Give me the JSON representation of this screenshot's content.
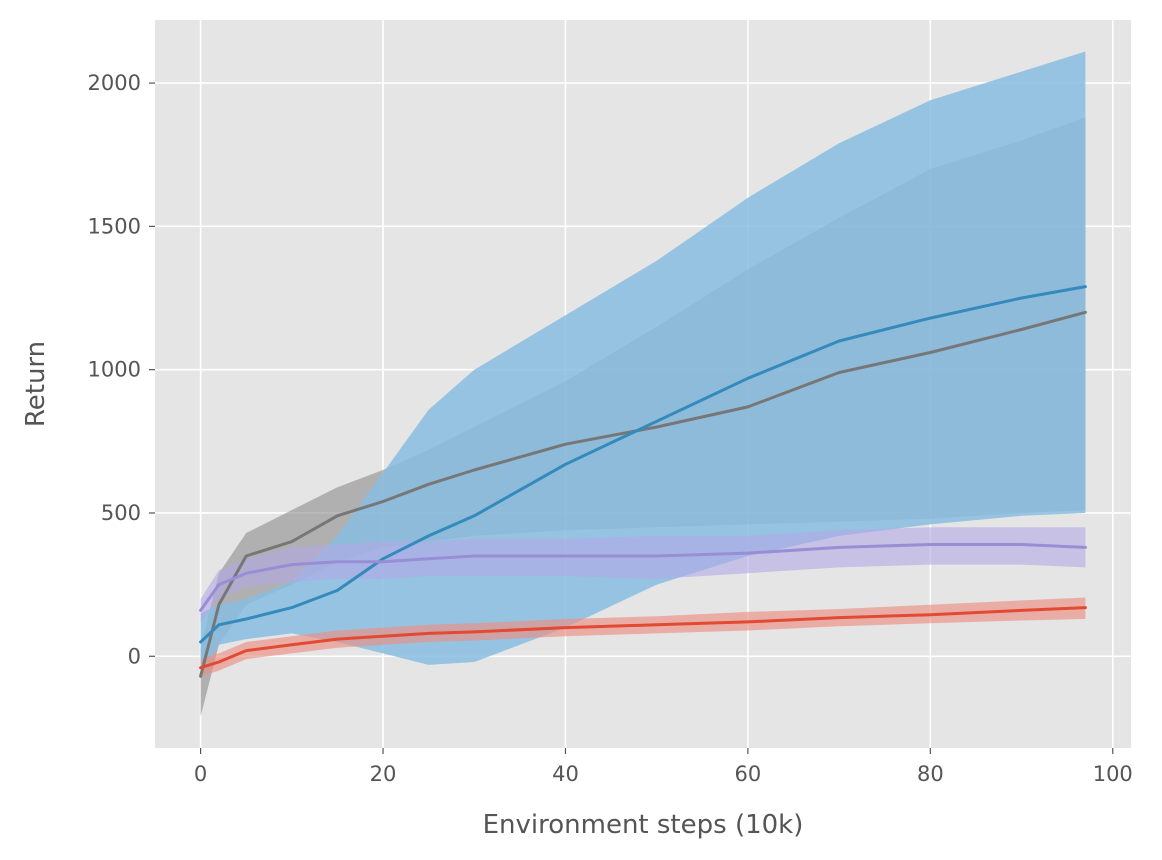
{
  "chart_data": {
    "type": "line",
    "title": "",
    "xlabel": "Environment steps (10k)",
    "ylabel": "Return",
    "xlim": [
      -5,
      102
    ],
    "ylim": [
      -320,
      2220
    ],
    "xticks": [
      0,
      20,
      40,
      60,
      80,
      100
    ],
    "yticks": [
      0,
      500,
      1000,
      1500,
      2000
    ],
    "grid": true,
    "legend": "none",
    "series": [
      {
        "name": "grey",
        "color": "#777777",
        "band_color": "#8c8c8c",
        "x": [
          0,
          2,
          5,
          10,
          15,
          20,
          25,
          30,
          40,
          50,
          60,
          70,
          80,
          90,
          97
        ],
        "mean": [
          -70,
          180,
          350,
          400,
          490,
          540,
          600,
          650,
          740,
          800,
          870,
          990,
          1060,
          1140,
          1200
        ],
        "lower": [
          -210,
          40,
          180,
          250,
          330,
          380,
          400,
          420,
          440,
          450,
          460,
          470,
          480,
          500,
          510
        ],
        "upper": [
          30,
          290,
          430,
          510,
          590,
          650,
          720,
          800,
          960,
          1150,
          1350,
          1530,
          1700,
          1800,
          1880
        ]
      },
      {
        "name": "blue",
        "color": "#348abd",
        "band_color": "#88bde0",
        "x": [
          0,
          2,
          5,
          10,
          15,
          20,
          25,
          30,
          40,
          50,
          60,
          70,
          80,
          90,
          97
        ],
        "mean": [
          50,
          110,
          130,
          170,
          230,
          340,
          420,
          490,
          670,
          820,
          970,
          1100,
          1180,
          1250,
          1290
        ],
        "lower": [
          -50,
          40,
          60,
          80,
          50,
          10,
          -30,
          -20,
          100,
          250,
          350,
          420,
          460,
          490,
          500
        ],
        "upper": [
          150,
          180,
          200,
          260,
          420,
          640,
          860,
          1000,
          1190,
          1380,
          1600,
          1790,
          1940,
          2040,
          2110
        ]
      },
      {
        "name": "purple",
        "color": "#988ed5",
        "band_color": "#b2a9e6",
        "x": [
          0,
          2,
          5,
          10,
          15,
          20,
          25,
          30,
          40,
          50,
          60,
          70,
          80,
          90,
          97
        ],
        "mean": [
          160,
          250,
          290,
          320,
          330,
          330,
          340,
          350,
          350,
          350,
          360,
          380,
          390,
          390,
          380
        ],
        "lower": [
          120,
          200,
          240,
          260,
          270,
          270,
          280,
          280,
          280,
          270,
          290,
          310,
          320,
          320,
          310
        ],
        "upper": [
          200,
          300,
          340,
          380,
          390,
          400,
          400,
          410,
          410,
          420,
          420,
          440,
          450,
          450,
          450
        ]
      },
      {
        "name": "red",
        "color": "#e24a33",
        "band_color": "#ec8f83",
        "x": [
          0,
          2,
          5,
          10,
          15,
          20,
          25,
          30,
          40,
          50,
          60,
          70,
          80,
          90,
          97
        ],
        "mean": [
          -40,
          -20,
          20,
          40,
          60,
          70,
          80,
          85,
          100,
          110,
          120,
          135,
          145,
          160,
          170
        ],
        "lower": [
          -70,
          -50,
          -10,
          10,
          30,
          40,
          50,
          55,
          70,
          80,
          90,
          105,
          115,
          125,
          130
        ],
        "upper": [
          -10,
          10,
          50,
          70,
          90,
          100,
          110,
          115,
          130,
          140,
          155,
          165,
          180,
          195,
          205
        ]
      }
    ]
  }
}
